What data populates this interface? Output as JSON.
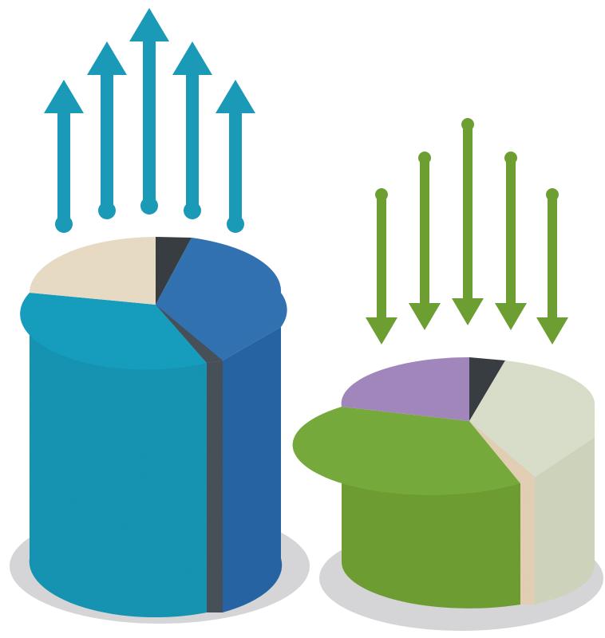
{
  "colors": {
    "background": "#ffffff",
    "shadow": "#d5d5d7",
    "arrow_up": "#1b9ab8",
    "arrow_down": "#6c9e32",
    "teal": "#1ea0c1",
    "teal_side": "#1a96b6",
    "blue": "#3475b5",
    "blue_side": "#2c66a6",
    "cream": "#ecdfc8",
    "dark": "#3a3f44",
    "dark_side": "#4a525c",
    "purple": "#a58ac0",
    "green": "#79ad3c",
    "green_side": "#6fa034",
    "sage": "#dce2cd",
    "sage_side": "#d2d8c0",
    "tan": "#e6d3b8"
  },
  "diagram": {
    "left_cylinder": {
      "icon": "growing-cylinder",
      "segments": [
        "teal",
        "blue",
        "cream",
        "dark"
      ],
      "arrows": {
        "direction": "up",
        "count": 5
      }
    },
    "right_cylinder": {
      "icon": "shrinking-cylinder",
      "segments": [
        "green",
        "sage",
        "purple",
        "dark",
        "tan"
      ],
      "arrows": {
        "direction": "down",
        "count": 5
      }
    }
  }
}
